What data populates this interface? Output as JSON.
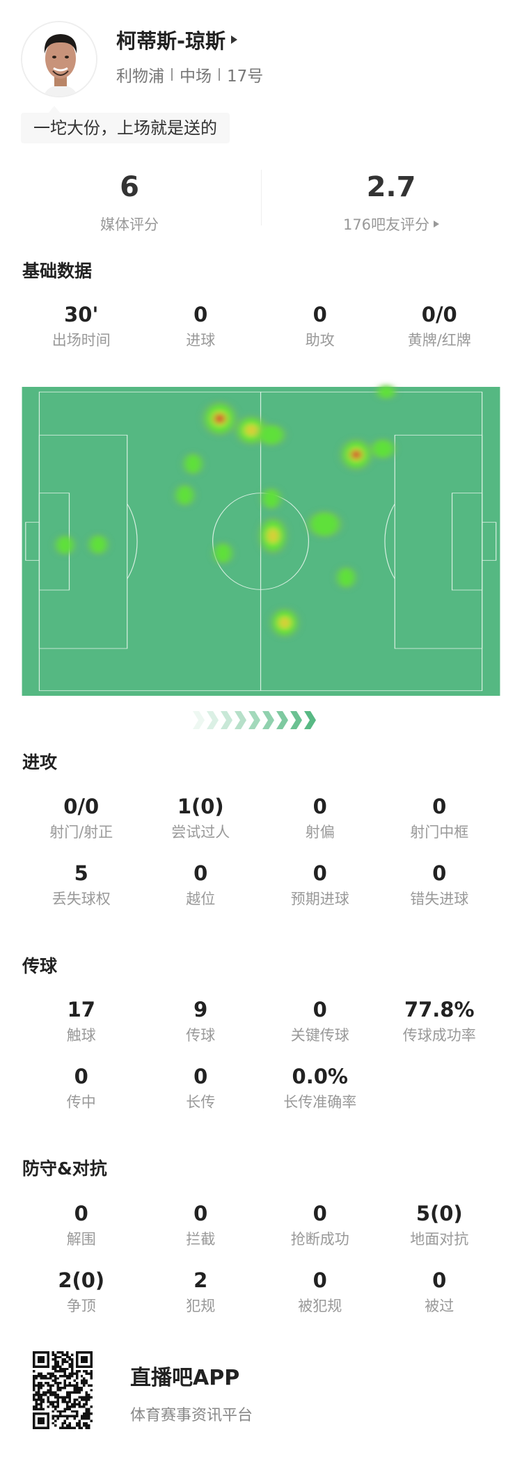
{
  "player": {
    "name": "柯蒂斯-琼斯",
    "team": "利物浦",
    "position": "中场",
    "number": "17号",
    "comment": "一坨大份，上场就是送的"
  },
  "ratings": {
    "media_value": "6",
    "media_label": "媒体评分",
    "fan_value": "2.7",
    "fan_label": "176吧友评分"
  },
  "basic": {
    "title": "基础数据",
    "stats": [
      {
        "value": "30'",
        "label": "出场时间"
      },
      {
        "value": "0",
        "label": "进球"
      },
      {
        "value": "0",
        "label": "助攻"
      },
      {
        "value": "0/0",
        "label": "黄牌/红牌"
      }
    ]
  },
  "heatmap": {
    "pitch_color": "#55b882",
    "line_color": "#d9f0e2",
    "attack_direction": "right"
  },
  "attack": {
    "title": "进攻",
    "stats": [
      {
        "value": "0/0",
        "label": "射门/射正"
      },
      {
        "value": "1(0)",
        "label": "尝试过人"
      },
      {
        "value": "0",
        "label": "射偏"
      },
      {
        "value": "0",
        "label": "射门中框"
      },
      {
        "value": "5",
        "label": "丢失球权"
      },
      {
        "value": "0",
        "label": "越位"
      },
      {
        "value": "0",
        "label": "预期进球"
      },
      {
        "value": "0",
        "label": "错失进球"
      }
    ]
  },
  "passing": {
    "title": "传球",
    "stats": [
      {
        "value": "17",
        "label": "触球"
      },
      {
        "value": "9",
        "label": "传球"
      },
      {
        "value": "0",
        "label": "关键传球"
      },
      {
        "value": "77.8%",
        "label": "传球成功率"
      },
      {
        "value": "0",
        "label": "传中"
      },
      {
        "value": "0",
        "label": "长传"
      },
      {
        "value": "0.0%",
        "label": "长传准确率"
      }
    ]
  },
  "defense": {
    "title": "防守&对抗",
    "stats": [
      {
        "value": "0",
        "label": "解围"
      },
      {
        "value": "0",
        "label": "拦截"
      },
      {
        "value": "0",
        "label": "抢断成功"
      },
      {
        "value": "5(0)",
        "label": "地面对抗"
      },
      {
        "value": "2(0)",
        "label": "争顶"
      },
      {
        "value": "2",
        "label": "犯规"
      },
      {
        "value": "0",
        "label": "被犯规"
      },
      {
        "value": "0",
        "label": "被过"
      }
    ]
  },
  "footer": {
    "app_name": "直播吧APP",
    "tagline": "体育赛事资讯平台"
  }
}
